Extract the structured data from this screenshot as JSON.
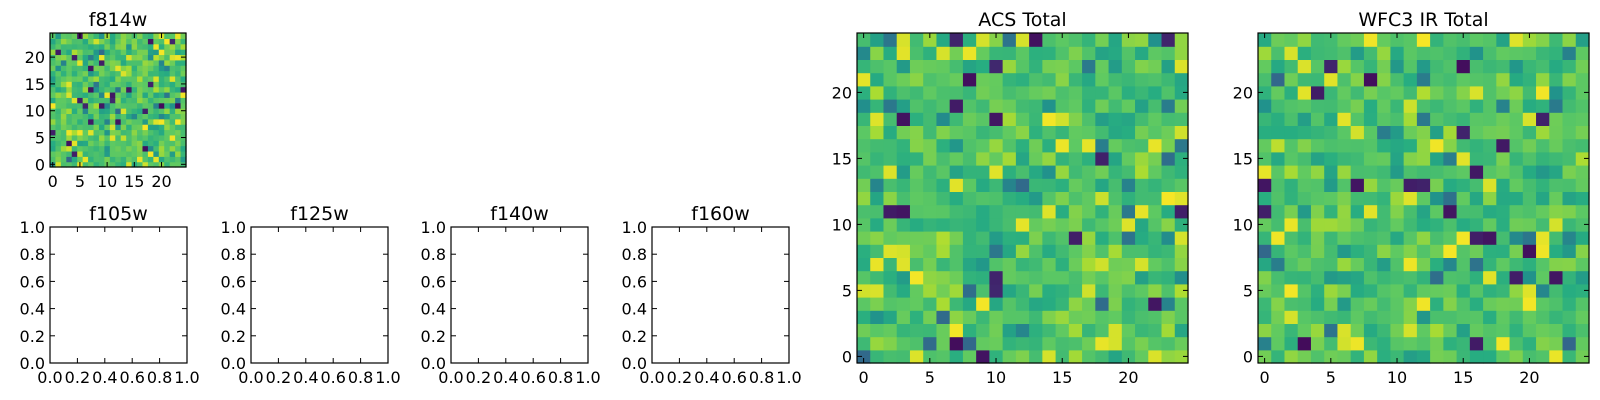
{
  "figure": {
    "colormap": [
      "#440154",
      "#3b528b",
      "#21918c",
      "#27ad81",
      "#5ec962",
      "#aadc32",
      "#fde725"
    ]
  },
  "chart_data": [
    {
      "id": "f814w",
      "type": "heatmap",
      "title": "f814w",
      "grid": [
        25,
        25
      ],
      "seed": 11,
      "xlim": [
        -0.5,
        24.5
      ],
      "ylim": [
        -0.5,
        24.5
      ],
      "xticks": [
        {
          "v": 0,
          "label": "0"
        },
        {
          "v": 5,
          "label": "5"
        },
        {
          "v": 10,
          "label": "10"
        },
        {
          "v": 15,
          "label": "15"
        },
        {
          "v": 20,
          "label": "20"
        }
      ],
      "yticks": [
        {
          "v": 0,
          "label": "0"
        },
        {
          "v": 5,
          "label": "5"
        },
        {
          "v": 10,
          "label": "10"
        },
        {
          "v": 15,
          "label": "15"
        },
        {
          "v": 20,
          "label": "20"
        }
      ]
    },
    {
      "id": "f105w",
      "type": "heatmap",
      "title": "f105w",
      "empty": true,
      "xlim": [
        0,
        1
      ],
      "ylim": [
        0,
        1
      ],
      "xticks": [
        {
          "v": 0,
          "label": "0.0"
        },
        {
          "v": 0.2,
          "label": "0.2"
        },
        {
          "v": 0.4,
          "label": "0.4"
        },
        {
          "v": 0.6,
          "label": "0.6"
        },
        {
          "v": 0.8,
          "label": "0.8"
        },
        {
          "v": 1,
          "label": "1.0"
        }
      ],
      "yticks": [
        {
          "v": 0,
          "label": "0.0"
        },
        {
          "v": 0.2,
          "label": "0.2"
        },
        {
          "v": 0.4,
          "label": "0.4"
        },
        {
          "v": 0.6,
          "label": "0.6"
        },
        {
          "v": 0.8,
          "label": "0.8"
        },
        {
          "v": 1,
          "label": "1.0"
        }
      ]
    },
    {
      "id": "f125w",
      "type": "heatmap",
      "title": "f125w",
      "empty": true,
      "xlim": [
        0,
        1
      ],
      "ylim": [
        0,
        1
      ],
      "xticks": [
        {
          "v": 0,
          "label": "0.0"
        },
        {
          "v": 0.2,
          "label": "0.2"
        },
        {
          "v": 0.4,
          "label": "0.4"
        },
        {
          "v": 0.6,
          "label": "0.6"
        },
        {
          "v": 0.8,
          "label": "0.8"
        },
        {
          "v": 1,
          "label": "1.0"
        }
      ],
      "yticks": [
        {
          "v": 0,
          "label": "0.0"
        },
        {
          "v": 0.2,
          "label": "0.2"
        },
        {
          "v": 0.4,
          "label": "0.4"
        },
        {
          "v": 0.6,
          "label": "0.6"
        },
        {
          "v": 0.8,
          "label": "0.8"
        },
        {
          "v": 1,
          "label": "1.0"
        }
      ]
    },
    {
      "id": "f140w",
      "type": "heatmap",
      "title": "f140w",
      "empty": true,
      "xlim": [
        0,
        1
      ],
      "ylim": [
        0,
        1
      ],
      "xticks": [
        {
          "v": 0,
          "label": "0.0"
        },
        {
          "v": 0.2,
          "label": "0.2"
        },
        {
          "v": 0.4,
          "label": "0.4"
        },
        {
          "v": 0.6,
          "label": "0.6"
        },
        {
          "v": 0.8,
          "label": "0.8"
        },
        {
          "v": 1,
          "label": "1.0"
        }
      ],
      "yticks": [
        {
          "v": 0,
          "label": "0.0"
        },
        {
          "v": 0.2,
          "label": "0.2"
        },
        {
          "v": 0.4,
          "label": "0.4"
        },
        {
          "v": 0.6,
          "label": "0.6"
        },
        {
          "v": 0.8,
          "label": "0.8"
        },
        {
          "v": 1,
          "label": "1.0"
        }
      ]
    },
    {
      "id": "f160w",
      "type": "heatmap",
      "title": "f160w",
      "empty": true,
      "xlim": [
        0,
        1
      ],
      "ylim": [
        0,
        1
      ],
      "xticks": [
        {
          "v": 0,
          "label": "0.0"
        },
        {
          "v": 0.2,
          "label": "0.2"
        },
        {
          "v": 0.4,
          "label": "0.4"
        },
        {
          "v": 0.6,
          "label": "0.6"
        },
        {
          "v": 0.8,
          "label": "0.8"
        },
        {
          "v": 1,
          "label": "1.0"
        }
      ],
      "yticks": [
        {
          "v": 0,
          "label": "0.0"
        },
        {
          "v": 0.2,
          "label": "0.2"
        },
        {
          "v": 0.4,
          "label": "0.4"
        },
        {
          "v": 0.6,
          "label": "0.6"
        },
        {
          "v": 0.8,
          "label": "0.8"
        },
        {
          "v": 1,
          "label": "1.0"
        }
      ]
    },
    {
      "id": "acs-total",
      "type": "heatmap",
      "title": "ACS Total",
      "grid": [
        25,
        25
      ],
      "seed": 37,
      "xlim": [
        -0.5,
        24.5
      ],
      "ylim": [
        -0.5,
        24.5
      ],
      "xticks": [
        {
          "v": 0,
          "label": "0"
        },
        {
          "v": 5,
          "label": "5"
        },
        {
          "v": 10,
          "label": "10"
        },
        {
          "v": 15,
          "label": "15"
        },
        {
          "v": 20,
          "label": "20"
        }
      ],
      "yticks": [
        {
          "v": 0,
          "label": "0"
        },
        {
          "v": 5,
          "label": "5"
        },
        {
          "v": 10,
          "label": "10"
        },
        {
          "v": 15,
          "label": "15"
        },
        {
          "v": 20,
          "label": "20"
        }
      ]
    },
    {
      "id": "wfc3-ir-total",
      "type": "heatmap",
      "title": "WFC3 IR Total",
      "grid": [
        25,
        25
      ],
      "seed": 73,
      "xlim": [
        -0.5,
        24.5
      ],
      "ylim": [
        -0.5,
        24.5
      ],
      "xticks": [
        {
          "v": 0,
          "label": "0"
        },
        {
          "v": 5,
          "label": "5"
        },
        {
          "v": 10,
          "label": "10"
        },
        {
          "v": 15,
          "label": "15"
        },
        {
          "v": 20,
          "label": "20"
        }
      ],
      "yticks": [
        {
          "v": 0,
          "label": "0"
        },
        {
          "v": 5,
          "label": "5"
        },
        {
          "v": 10,
          "label": "10"
        },
        {
          "v": 15,
          "label": "15"
        },
        {
          "v": 20,
          "label": "20"
        }
      ]
    }
  ]
}
